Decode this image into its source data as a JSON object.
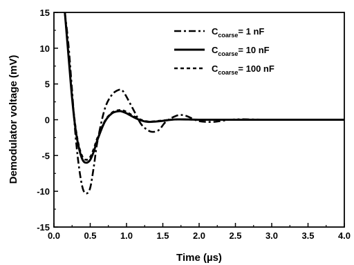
{
  "chart_data": {
    "type": "line",
    "xlabel": "Time (µs)",
    "ylabel": "Demodulator voltage (mV)",
    "xlim": [
      0.0,
      4.0
    ],
    "ylim": [
      -15,
      15
    ],
    "xticks": [
      "0.0",
      "0.5",
      "1.0",
      "1.5",
      "2.0",
      "2.5",
      "3.0",
      "3.5",
      "4.0"
    ],
    "yticks": [
      "15",
      "10",
      "5",
      "0",
      "-5",
      "-10",
      "-15"
    ],
    "grid": false,
    "legend_position": "top-right",
    "series": [
      {
        "name_main": "C",
        "name_sub": "coarse",
        "name_rest": "= 1 nF",
        "style": "dashdot",
        "x": [
          0.15,
          0.2,
          0.25,
          0.3,
          0.35,
          0.4,
          0.45,
          0.5,
          0.55,
          0.6,
          0.7,
          0.8,
          0.9,
          0.95,
          1.0,
          1.1,
          1.2,
          1.3,
          1.37,
          1.45,
          1.55,
          1.7,
          1.8,
          1.9,
          2.0,
          2.2,
          2.5,
          3.0,
          4.0
        ],
        "y": [
          15,
          10.5,
          4,
          -2.5,
          -7,
          -9.7,
          -10.3,
          -9.5,
          -6.5,
          -3,
          1.5,
          3.5,
          4.2,
          4.0,
          3.2,
          1.3,
          -0.6,
          -1.5,
          -1.7,
          -1.4,
          -0.2,
          0.6,
          0.6,
          0.2,
          -0.2,
          -0.3,
          0.05,
          0,
          0
        ]
      },
      {
        "name_main": "C",
        "name_sub": "coarse",
        "name_rest": "= 10 nF",
        "style": "solid",
        "x": [
          0.15,
          0.2,
          0.25,
          0.3,
          0.35,
          0.4,
          0.45,
          0.5,
          0.55,
          0.6,
          0.7,
          0.8,
          0.9,
          0.95,
          1.0,
          1.1,
          1.2,
          1.3,
          1.4,
          1.5,
          1.7,
          2.0,
          2.5,
          4.0
        ],
        "y": [
          15,
          9,
          3,
          -1.5,
          -4.2,
          -5.7,
          -6.0,
          -5.6,
          -4.4,
          -2.8,
          -0.3,
          0.9,
          1.2,
          1.1,
          0.9,
          0.35,
          -0.1,
          -0.3,
          -0.25,
          -0.15,
          0.05,
          0,
          0,
          0
        ]
      },
      {
        "name_main": "C",
        "name_sub": "coarse",
        "name_rest": "= 100 nF",
        "style": "dashed",
        "x": [
          0.15,
          0.2,
          0.25,
          0.3,
          0.35,
          0.4,
          0.45,
          0.5,
          0.55,
          0.6,
          0.7,
          0.8,
          0.9,
          0.95,
          1.0,
          1.1,
          1.2,
          1.3,
          1.4,
          1.5,
          1.7,
          2.0,
          2.5,
          4.0
        ],
        "y": [
          15,
          9.3,
          3.3,
          -1.2,
          -3.9,
          -5.3,
          -5.6,
          -5.2,
          -4.0,
          -2.5,
          -0.2,
          1.0,
          1.35,
          1.3,
          1.1,
          0.5,
          0.0,
          -0.25,
          -0.2,
          -0.1,
          0.05,
          0,
          0,
          0
        ]
      }
    ]
  }
}
